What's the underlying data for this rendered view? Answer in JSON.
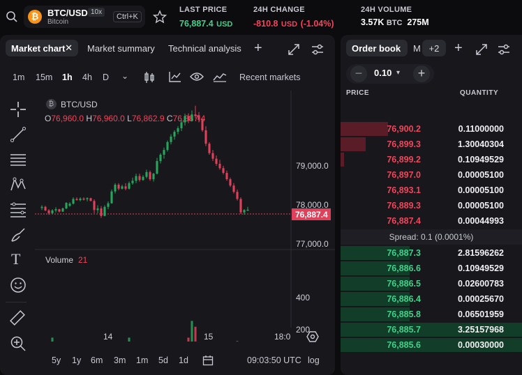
{
  "pair": {
    "symbol": "BTC/USD",
    "leverage": "10x",
    "name": "Bitcoin",
    "shortcut": "Ctrl+K",
    "coin_glyph": "₿"
  },
  "stats": {
    "last_price_label": "LAST PRICE",
    "last_price": "76,887.4",
    "last_price_ccy": "USD",
    "change_label": "24H CHANGE",
    "change_value": "-810.8",
    "change_ccy": "USD",
    "change_pct": "(-1.04%)",
    "volume_label": "24H VOLUME",
    "volume_btc": "3.57K",
    "volume_btc_unit": "BTC",
    "volume_usd": "275M"
  },
  "chart_tabs": [
    {
      "label": "Market chart"
    },
    {
      "label": "Market summary"
    },
    {
      "label": "Technical analysis"
    }
  ],
  "timeframes": [
    "1m",
    "15m",
    "1h",
    "4h",
    "D"
  ],
  "recent_markets": "Recent markets",
  "legend": {
    "symbol": "BTC/USD",
    "o_label": "O",
    "o": "76,960.0",
    "h_label": "H",
    "h": "76,960.0",
    "l_label": "L",
    "l": "76,862.9",
    "c_label": "C",
    "c": "76,887.4"
  },
  "price_axis": {
    "labels": [
      "79,000.0",
      "78,000.0",
      "77,000.0"
    ],
    "current": "76,887.4"
  },
  "volume": {
    "label": "Volume",
    "value": "21",
    "axis": [
      "400",
      "200"
    ],
    "current": "21"
  },
  "time_axis": [
    "14",
    "15",
    "18:0"
  ],
  "ranges": [
    "5y",
    "1y",
    "6m",
    "3m",
    "1m",
    "5d",
    "1d"
  ],
  "clock": "09:03:50 UTC",
  "log_label": "log",
  "orderbook": {
    "tab": "Order book",
    "tab2": "M",
    "more": "+2",
    "tick": "0.10",
    "price_hdr": "PRICE",
    "qty_hdr": "QUANTITY",
    "asks": [
      {
        "price": "76,900.2",
        "qty": "0.11000000",
        "depth": 0.26
      },
      {
        "price": "76,899.3",
        "qty": "1.30040304",
        "depth": 0.14
      },
      {
        "price": "76,899.2",
        "qty": "0.10949529",
        "depth": 0.02
      },
      {
        "price": "76,897.0",
        "qty": "0.00005100",
        "depth": 0
      },
      {
        "price": "76,893.1",
        "qty": "0.00005100",
        "depth": 0
      },
      {
        "price": "76,889.3",
        "qty": "0.00005100",
        "depth": 0
      },
      {
        "price": "76,887.4",
        "qty": "0.00044993",
        "depth": 0
      }
    ],
    "spread": "Spread: 0.1 (0.0001%)",
    "bids": [
      {
        "price": "76,887.3",
        "qty": "2.81596262",
        "depth": 0.38
      },
      {
        "price": "76,886.6",
        "qty": "0.10949529",
        "depth": 0.38
      },
      {
        "price": "76,886.5",
        "qty": "0.02600783",
        "depth": 0.38
      },
      {
        "price": "76,886.4",
        "qty": "0.00025670",
        "depth": 0.38
      },
      {
        "price": "76,885.8",
        "qty": "0.06501959",
        "depth": 0.38
      },
      {
        "price": "76,885.7",
        "qty": "3.25157968",
        "depth": 1.0
      },
      {
        "price": "76,885.6",
        "qty": "0.00030000",
        "depth": 1.0
      }
    ]
  },
  "colors": {
    "up": "#26a65b",
    "down": "#e0415a",
    "bg": "#0c0c0f",
    "panel": "#17171c",
    "accent": "#f7931a"
  },
  "chart_data": {
    "type": "candlestick",
    "y_axis_labels": [
      "79,000.0",
      "78,000.0",
      "77,000.0"
    ],
    "last": 76887.4,
    "candles": [
      [
        76960,
        77000,
        76880,
        76960
      ],
      [
        76960,
        76990,
        76850,
        76870
      ],
      [
        76870,
        76900,
        76760,
        76800
      ],
      [
        76800,
        76900,
        76780,
        76870
      ],
      [
        76870,
        76950,
        76820,
        76900
      ],
      [
        76900,
        76910,
        76820,
        76840
      ],
      [
        76840,
        76940,
        76830,
        76920
      ],
      [
        76920,
        77080,
        76900,
        77060
      ],
      [
        76990,
        77080,
        76960,
        77040
      ],
      [
        77040,
        77200,
        77020,
        77160
      ],
      [
        77160,
        77200,
        77120,
        77130
      ],
      [
        77130,
        77200,
        77100,
        77170
      ],
      [
        77170,
        77200,
        77120,
        77160
      ],
      [
        77160,
        77200,
        77100,
        77180
      ],
      [
        77180,
        77190,
        77100,
        77110
      ],
      [
        77110,
        77150,
        76800,
        76880
      ],
      [
        76880,
        77000,
        76800,
        76920
      ],
      [
        76920,
        76980,
        76680,
        76730
      ],
      [
        76730,
        77000,
        76720,
        76960
      ],
      [
        76960,
        77100,
        76900,
        77050
      ],
      [
        77050,
        77400,
        77040,
        77350
      ],
      [
        77350,
        77560,
        77300,
        77520
      ],
      [
        77520,
        77560,
        77380,
        77420
      ],
      [
        77420,
        77520,
        77400,
        77480
      ],
      [
        77480,
        77560,
        77380,
        77420
      ],
      [
        77420,
        77600,
        77400,
        77560
      ],
      [
        77560,
        77700,
        77520,
        77620
      ],
      [
        77620,
        77800,
        77560,
        77740
      ],
      [
        77740,
        77800,
        77600,
        77640
      ],
      [
        77640,
        77760,
        77620,
        77720
      ],
      [
        77720,
        77900,
        77680,
        77840
      ],
      [
        77840,
        77880,
        77620,
        77660
      ],
      [
        77660,
        77820,
        77600,
        77800
      ],
      [
        77800,
        78200,
        77780,
        78120
      ],
      [
        78120,
        78320,
        78060,
        78280
      ],
      [
        78280,
        78460,
        78180,
        78400
      ],
      [
        78400,
        78640,
        78360,
        78600
      ],
      [
        78600,
        78800,
        78540,
        78740
      ],
      [
        78740,
        78900,
        78660,
        78860
      ],
      [
        78860,
        79000,
        78800,
        78950
      ],
      [
        78950,
        79150,
        78880,
        79100
      ],
      [
        79100,
        79320,
        79020,
        79260
      ],
      [
        79260,
        79330,
        79080,
        79140
      ],
      [
        79140,
        79400,
        79120,
        79300
      ],
      [
        79300,
        79520,
        79200,
        79280
      ],
      [
        79280,
        79360,
        79100,
        79160
      ],
      [
        79160,
        79200,
        78860,
        78900
      ],
      [
        78900,
        79000,
        78500,
        78560
      ],
      [
        78560,
        78600,
        78280,
        78320
      ],
      [
        78320,
        78400,
        78120,
        78180
      ],
      [
        78180,
        78260,
        78000,
        78050
      ],
      [
        78050,
        78150,
        77900,
        77940
      ],
      [
        77940,
        78000,
        77780,
        77820
      ],
      [
        77820,
        77880,
        77620,
        77660
      ],
      [
        77660,
        77700,
        77460,
        77500
      ],
      [
        77500,
        77560,
        77300,
        77340
      ],
      [
        77340,
        77400,
        77120,
        77160
      ],
      [
        77160,
        77200,
        76780,
        76820
      ],
      [
        76820,
        76900,
        76760,
        76880
      ],
      [
        76880,
        76960,
        76860,
        76887.4
      ]
    ],
    "volumes": [
      40,
      50,
      100,
      140,
      30,
      25,
      38,
      35,
      70,
      60,
      90,
      50,
      40,
      30,
      30,
      55,
      25,
      40,
      35,
      50,
      50,
      60,
      35,
      40,
      45,
      140,
      30,
      45,
      40,
      50,
      45,
      90,
      60,
      55,
      40,
      30,
      65,
      100,
      95,
      60,
      70,
      35,
      140,
      240,
      205,
      110,
      60,
      40,
      90,
      75,
      60,
      45,
      25,
      20,
      30,
      60,
      120,
      85,
      30,
      21
    ]
  }
}
